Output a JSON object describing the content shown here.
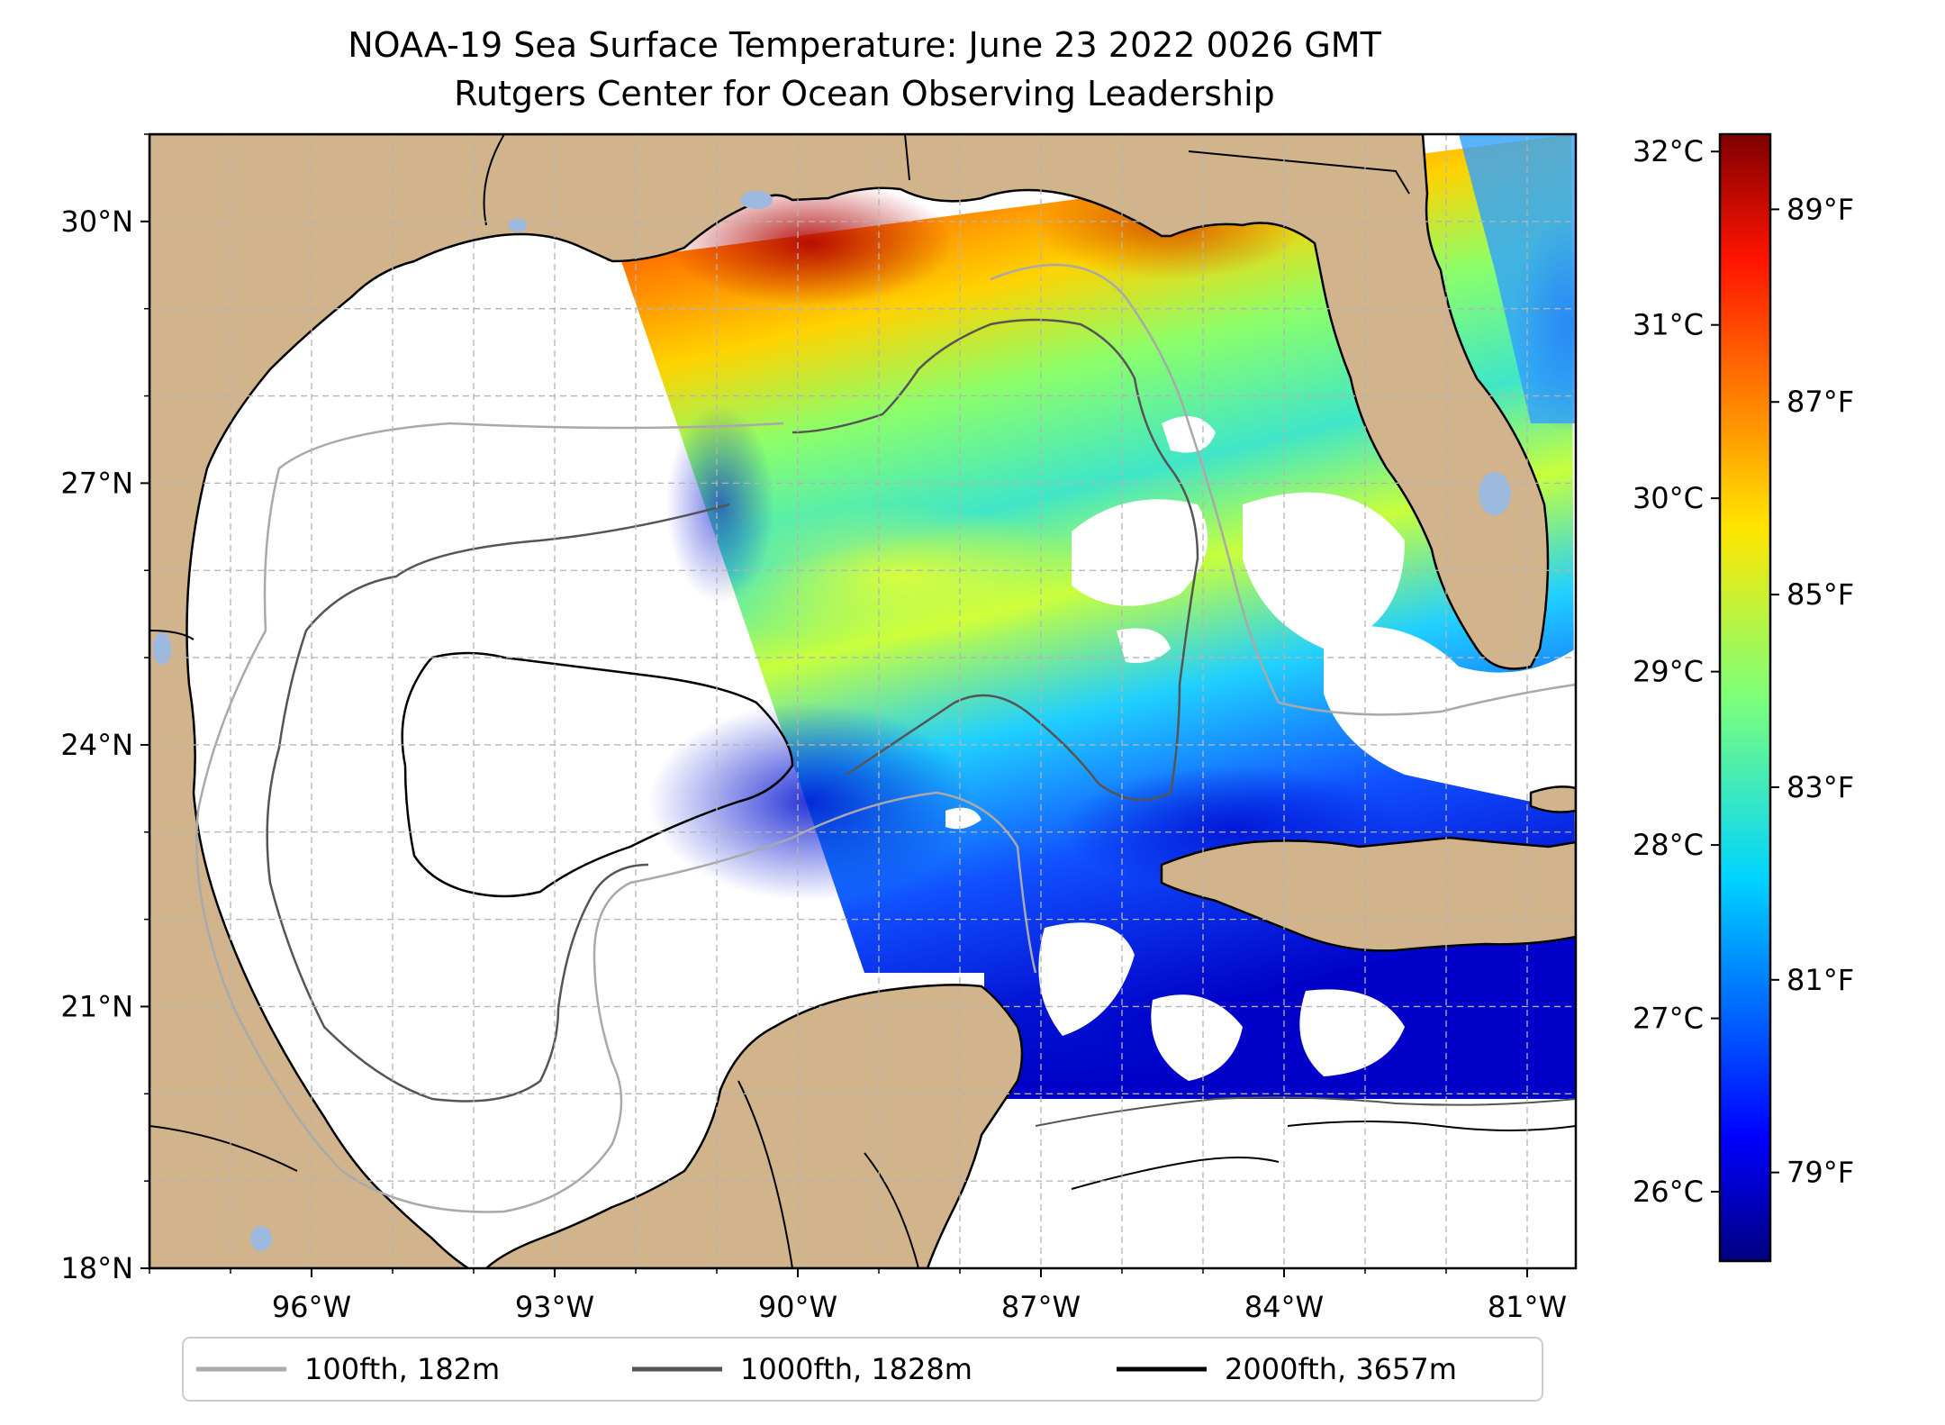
{
  "title": {
    "line1": "NOAA-19 Sea Surface Temperature: June 23 2022 0026 GMT",
    "line2": "Rutgers Center for Ocean Observing Leadership"
  },
  "map": {
    "lon_range": [
      -98,
      -80.4
    ],
    "lat_range": [
      18,
      31
    ],
    "lon_ticks": [
      {
        "value": -96,
        "label": "96°W"
      },
      {
        "value": -93,
        "label": "93°W"
      },
      {
        "value": -90,
        "label": "90°W"
      },
      {
        "value": -87,
        "label": "87°W"
      },
      {
        "value": -84,
        "label": "84°W"
      },
      {
        "value": -81,
        "label": "81°W"
      }
    ],
    "lat_ticks": [
      {
        "value": 30,
        "label": "30°N"
      },
      {
        "value": 27,
        "label": "27°N"
      },
      {
        "value": 24,
        "label": "24°N"
      },
      {
        "value": 21,
        "label": "21°N"
      },
      {
        "value": 18,
        "label": "18°N"
      }
    ],
    "grid": "dashed",
    "land_color": "#d2b48c",
    "lake_color": "#9db9e0"
  },
  "colorbar": {
    "min_c": 25.6,
    "max_c": 32.1,
    "celsius_ticks": [
      {
        "value": 26,
        "label": "26°C"
      },
      {
        "value": 27,
        "label": "27°C"
      },
      {
        "value": 28,
        "label": "28°C"
      },
      {
        "value": 29,
        "label": "29°C"
      },
      {
        "value": 30,
        "label": "30°C"
      },
      {
        "value": 31,
        "label": "31°C"
      },
      {
        "value": 32,
        "label": "32°C"
      }
    ],
    "fahrenheit_ticks": [
      {
        "value": 79,
        "label": "79°F"
      },
      {
        "value": 81,
        "label": "81°F"
      },
      {
        "value": 83,
        "label": "83°F"
      },
      {
        "value": 85,
        "label": "85°F"
      },
      {
        "value": 87,
        "label": "87°F"
      },
      {
        "value": 89,
        "label": "89°F"
      }
    ],
    "colormap": "jet"
  },
  "legend": {
    "placement": "bottom",
    "entries": [
      {
        "label": "100fth, 182m",
        "color": "#a9a9a9"
      },
      {
        "label": "1000fth, 1828m",
        "color": "#555555"
      },
      {
        "label": "2000fth, 3657m",
        "color": "#000000"
      }
    ]
  }
}
